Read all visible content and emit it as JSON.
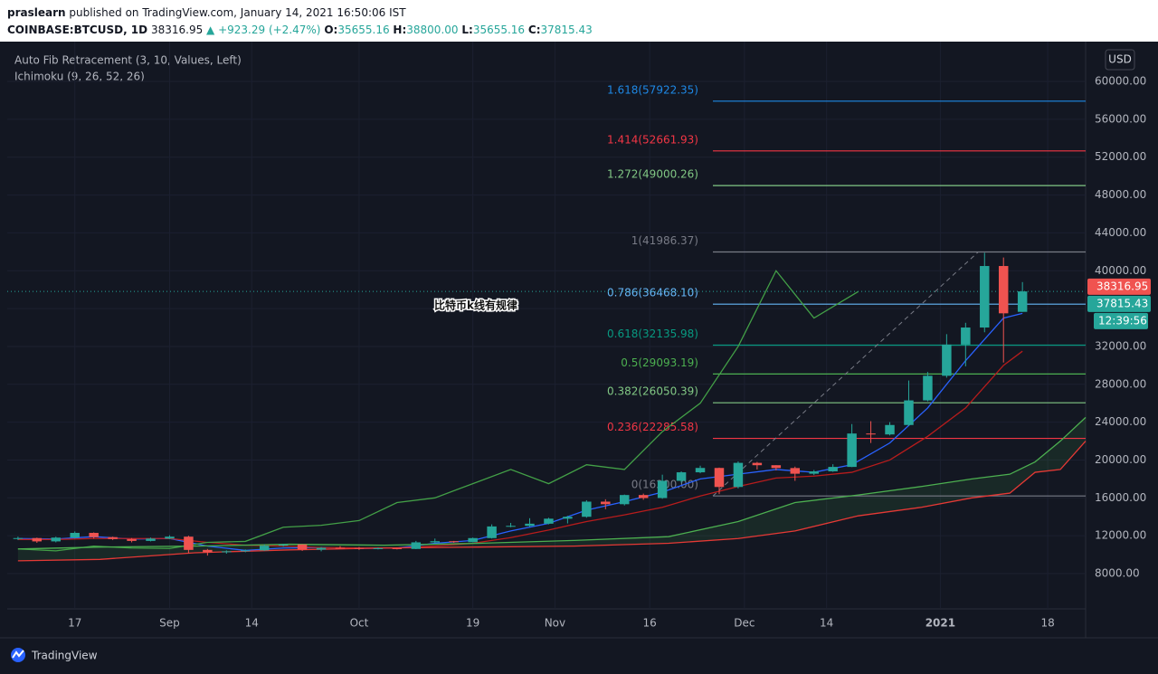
{
  "chart_data": {
    "type": "candlestick",
    "author": "praslearn",
    "published": "published on TradingView.com, January 14, 2021 16:50:06 IST",
    "symbol": "COINBASE:BTCUSD, 1D",
    "last_price": "38316.95",
    "change": "▲ +923.29 (+2.47%)",
    "ohlc_header": [
      {
        "key": "O:",
        "value": "35655.16"
      },
      {
        "key": "H:",
        "value": "38800.00"
      },
      {
        "key": "L:",
        "value": "35655.16"
      },
      {
        "key": "C:",
        "value": "37815.43"
      }
    ],
    "indicators": [
      "Auto Fib Retracement (3, 10, Values, Left)",
      "Ichimoku (9, 26, 52, 26)"
    ],
    "currency": "USD",
    "watermark": "比特币k线有规律",
    "brand": "TradingView",
    "xlim": [
      5.3,
      176
    ],
    "xticks": [
      {
        "value": 16,
        "label": "17"
      },
      {
        "value": 31,
        "label": "Sep"
      },
      {
        "value": 44,
        "label": "14"
      },
      {
        "value": 61,
        "label": "Oct"
      },
      {
        "value": 79,
        "label": "19"
      },
      {
        "value": 92,
        "label": "Nov"
      },
      {
        "value": 107,
        "label": "16"
      },
      {
        "value": 122,
        "label": "Dec"
      },
      {
        "value": 135,
        "label": "14"
      },
      {
        "value": 153,
        "label": "2021"
      },
      {
        "value": 170,
        "label": "18"
      }
    ],
    "ylim": [
      4270,
      63830
    ],
    "yticks": [
      {
        "value": 8000,
        "label": "8000.00"
      },
      {
        "value": 12000,
        "label": "12000.00"
      },
      {
        "value": 16000,
        "label": "16000.00"
      },
      {
        "value": 20000,
        "label": "20000.00"
      },
      {
        "value": 24000,
        "label": "24000.00"
      },
      {
        "value": 28000,
        "label": "28000.00"
      },
      {
        "value": 32000,
        "label": "32000.00"
      },
      {
        "value": 36000,
        "label": "36000.00"
      },
      {
        "value": 40000,
        "label": "40000.00"
      },
      {
        "value": 44000,
        "label": "44000.00"
      },
      {
        "value": 48000,
        "label": "48000.00"
      },
      {
        "value": 52000,
        "label": "52000.00"
      },
      {
        "value": 56000,
        "label": "56000.00"
      },
      {
        "value": 60000,
        "label": "60000.00"
      }
    ],
    "up_color": "#26a69a",
    "down_color": "#ef5350",
    "candles": {
      "x": [
        7,
        10,
        13,
        16,
        19,
        22,
        25,
        28,
        31,
        34,
        37,
        40,
        43,
        46,
        49,
        52,
        55,
        58,
        61,
        64,
        67,
        70,
        73,
        76,
        79,
        82,
        85,
        88,
        91,
        94,
        97,
        100,
        103,
        106,
        109,
        112,
        115,
        118,
        121,
        124,
        127,
        130,
        133,
        136,
        139,
        142,
        145,
        148,
        151,
        154,
        157,
        160,
        163,
        166
      ],
      "ohlc": [
        [
          11700,
          11900,
          11550,
          11750
        ],
        [
          11750,
          11800,
          11250,
          11400
        ],
        [
          11400,
          11900,
          11300,
          11800
        ],
        [
          11800,
          12450,
          11700,
          12300
        ],
        [
          12300,
          12350,
          11700,
          11850
        ],
        [
          11850,
          11900,
          11550,
          11650
        ],
        [
          11650,
          11750,
          11300,
          11450
        ],
        [
          11450,
          11800,
          11400,
          11700
        ],
        [
          11700,
          12050,
          11650,
          11900
        ],
        [
          11900,
          12000,
          10150,
          10500
        ],
        [
          10500,
          10600,
          9900,
          10250
        ],
        [
          10250,
          10450,
          10100,
          10350
        ],
        [
          10350,
          10550,
          10250,
          10450
        ],
        [
          10450,
          11100,
          10400,
          10950
        ],
        [
          10950,
          11150,
          10850,
          11080
        ],
        [
          11080,
          11100,
          10400,
          10530
        ],
        [
          10530,
          10800,
          10350,
          10720
        ],
        [
          10720,
          10900,
          10650,
          10700
        ],
        [
          10700,
          10800,
          10500,
          10620
        ],
        [
          10620,
          10750,
          10550,
          10680
        ],
        [
          10680,
          10700,
          10550,
          10600
        ],
        [
          10600,
          11450,
          10580,
          11300
        ],
        [
          11300,
          11700,
          11250,
          11420
        ],
        [
          11420,
          11450,
          11250,
          11320
        ],
        [
          11320,
          11800,
          11300,
          11750
        ],
        [
          11750,
          13200,
          11700,
          12980
        ],
        [
          12980,
          13350,
          12900,
          13040
        ],
        [
          13040,
          13850,
          12950,
          13270
        ],
        [
          13270,
          13900,
          13200,
          13800
        ],
        [
          13800,
          14100,
          13300,
          14000
        ],
        [
          14000,
          15750,
          13900,
          15600
        ],
        [
          15600,
          15850,
          14800,
          15330
        ],
        [
          15330,
          16350,
          15200,
          16300
        ],
        [
          16300,
          16450,
          15800,
          15980
        ],
        [
          15980,
          18450,
          15900,
          17800
        ],
        [
          17800,
          18800,
          17600,
          18700
        ],
        [
          18700,
          19400,
          18600,
          19160
        ],
        [
          19160,
          19200,
          16400,
          17150
        ],
        [
          17150,
          19850,
          17000,
          19700
        ],
        [
          19700,
          19800,
          19000,
          19450
        ],
        [
          19450,
          19450,
          18900,
          19150
        ],
        [
          19150,
          19300,
          17800,
          18550
        ],
        [
          18550,
          18950,
          18400,
          18800
        ],
        [
          18800,
          19550,
          18750,
          19270
        ],
        [
          19270,
          23800,
          19250,
          22800
        ],
        [
          22800,
          24100,
          21800,
          22700
        ],
        [
          22700,
          24000,
          22600,
          23700
        ],
        [
          23700,
          28400,
          23600,
          26300
        ],
        [
          26300,
          29300,
          26200,
          28900
        ],
        [
          28900,
          33300,
          28700,
          32200
        ],
        [
          32200,
          34500,
          29900,
          34000
        ],
        [
          34000,
          41900,
          33500,
          40500
        ],
        [
          40500,
          41400,
          30300,
          35500
        ],
        [
          35655.16,
          38800,
          35655.16,
          37815.43
        ]
      ]
    },
    "lines": [
      {
        "color": "#2962ff",
        "x": [
          7,
          13,
          19,
          25,
          31,
          37,
          43,
          49,
          55,
          61,
          67,
          73,
          79,
          85,
          91,
          97,
          103,
          109,
          115,
          121,
          127,
          133,
          139,
          145,
          151,
          157,
          163,
          166
        ],
        "values": [
          11700,
          11650,
          11900,
          11650,
          11700,
          10900,
          10450,
          10700,
          10750,
          10650,
          10700,
          11200,
          11500,
          12500,
          13300,
          14700,
          15600,
          16600,
          18000,
          18500,
          19000,
          18700,
          19500,
          21800,
          25500,
          30500,
          35000,
          35500
        ]
      },
      {
        "color": "#b71c1c",
        "x": [
          7,
          13,
          19,
          25,
          31,
          37,
          43,
          49,
          55,
          61,
          67,
          73,
          79,
          85,
          91,
          97,
          103,
          109,
          115,
          121,
          127,
          133,
          139,
          145,
          151,
          157,
          163,
          166
        ],
        "values": [
          11600,
          11600,
          11700,
          11700,
          11700,
          11300,
          11000,
          10900,
          10750,
          10700,
          10700,
          10900,
          11200,
          11800,
          12600,
          13500,
          14200,
          15000,
          16200,
          17200,
          18100,
          18300,
          18700,
          20000,
          22500,
          25500,
          30000,
          31500
        ]
      },
      {
        "color": "#43a047",
        "x": [
          7,
          13,
          19,
          25,
          31,
          37,
          43,
          49,
          55,
          61,
          67,
          73,
          79,
          85,
          91,
          97,
          103,
          109,
          115,
          121,
          127,
          133,
          140
        ],
        "values": [
          10600,
          10400,
          10900,
          10700,
          10650,
          11300,
          11400,
          12900,
          13100,
          13600,
          15500,
          16000,
          17500,
          19000,
          17500,
          19500,
          19000,
          23000,
          26000,
          32000,
          40000,
          35000,
          37800
        ]
      },
      {
        "color": "#4caf50",
        "x": [
          7,
          20,
          35,
          50,
          65,
          80,
          95,
          110,
          121,
          130,
          140,
          150,
          158,
          164,
          168,
          172,
          176
        ],
        "values": [
          10600,
          10800,
          10900,
          11100,
          11000,
          11200,
          11500,
          11900,
          13500,
          15500,
          16300,
          17200,
          18000,
          18500,
          19800,
          22000,
          24500
        ]
      },
      {
        "color": "#e53935",
        "x": [
          7,
          20,
          35,
          50,
          65,
          80,
          95,
          110,
          121,
          130,
          140,
          150,
          158,
          164,
          168,
          172,
          176
        ],
        "values": [
          9350,
          9500,
          10200,
          10500,
          10700,
          10800,
          10900,
          11200,
          11700,
          12500,
          14100,
          15000,
          16000,
          16500,
          18700,
          19000,
          22000
        ]
      }
    ],
    "trend_line": {
      "x": [
        117,
        159
      ],
      "values": [
        16200,
        41986.37
      ]
    },
    "fib_levels": [
      {
        "label": "1.618(57922.35)",
        "value": 57922.35,
        "color": "#1e88e5"
      },
      {
        "label": "1.414(52661.93)",
        "value": 52661.93,
        "color": "#f23645"
      },
      {
        "label": "1.272(49000.26)",
        "value": 49000.26,
        "color": "#81c784"
      },
      {
        "label": "1(41986.37)",
        "value": 41986.37,
        "color": "#787b86"
      },
      {
        "label": "0.786(36468.10)",
        "value": 36468.1,
        "color": "#64b5f6"
      },
      {
        "label": "0.618(32135.98)",
        "value": 32135.98,
        "color": "#089981"
      },
      {
        "label": "0.5(29093.19)",
        "value": 29093.19,
        "color": "#4caf50"
      },
      {
        "label": "0.382(26050.39)",
        "value": 26050.39,
        "color": "#81c784"
      },
      {
        "label": "0.236(22285.58)",
        "value": 22285.58,
        "color": "#f23645"
      },
      {
        "label": "0(16200.00)",
        "value": 16200,
        "color": "#787b86"
      }
    ],
    "price_labels": [
      {
        "label": "38316.95",
        "value": 38316.95,
        "color": "#f05350"
      },
      {
        "label": "37815.43",
        "value": 37815.43,
        "color": "#26a69a",
        "countdown": "12:39:56"
      }
    ]
  }
}
